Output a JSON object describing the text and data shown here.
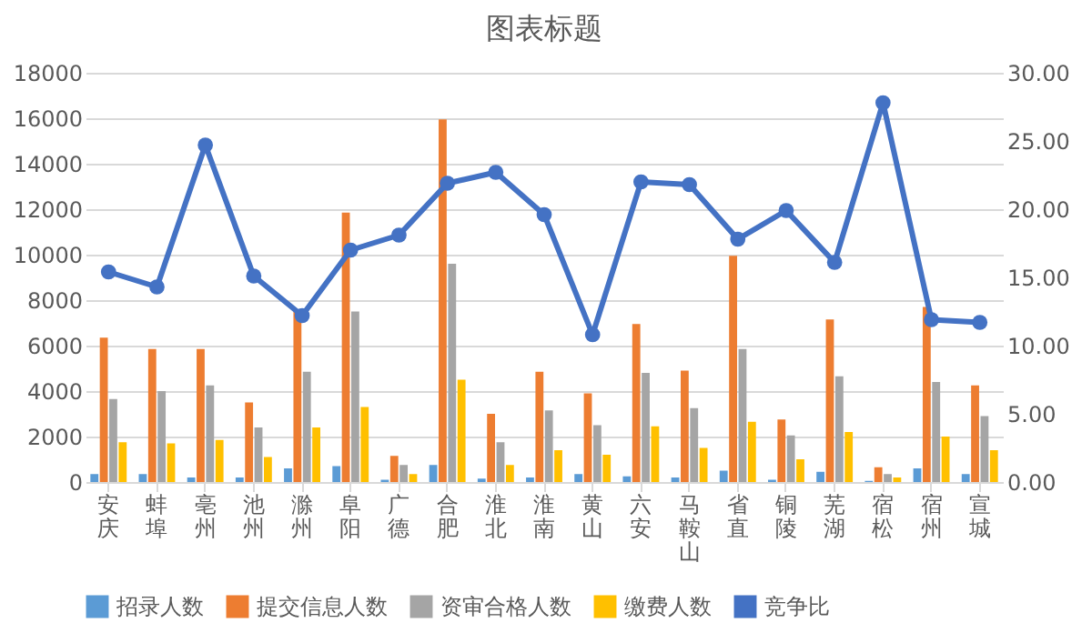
{
  "chart_data": {
    "type": "bar",
    "title": "图表标题",
    "categories": [
      "安庆",
      "蚌埠",
      "亳州",
      "池州",
      "滁州",
      "阜阳",
      "广德",
      "合肥",
      "淮北",
      "淮南",
      "黄山",
      "六安",
      "马鞍山",
      "省直",
      "铜陵",
      "芜湖",
      "宿松",
      "宿州",
      "宣城"
    ],
    "series": [
      {
        "name": "招录人数",
        "color": "#5b9bd5",
        "values": [
          350,
          350,
          200,
          200,
          600,
          700,
          100,
          750,
          150,
          200,
          350,
          250,
          200,
          500,
          100,
          450,
          50,
          600,
          350
        ]
      },
      {
        "name": "提交信息人数",
        "color": "#ed7d31",
        "values": [
          6350,
          5850,
          5850,
          3500,
          7600,
          11850,
          1150,
          15950,
          3000,
          4850,
          3900,
          6950,
          4900,
          9950,
          2750,
          7150,
          650,
          7700,
          4250
        ]
      },
      {
        "name": "资审合格人数",
        "color": "#a5a5a5",
        "values": [
          3650,
          4000,
          4250,
          2400,
          4850,
          7500,
          750,
          9600,
          1750,
          3150,
          2500,
          4800,
          3250,
          5850,
          2050,
          4650,
          350,
          4400,
          2900
        ]
      },
      {
        "name": "缴费人数",
        "color": "#ffc000",
        "values": [
          1750,
          1700,
          1850,
          1100,
          2400,
          3300,
          350,
          4500,
          750,
          1400,
          1200,
          2450,
          1500,
          2650,
          1000,
          2200,
          200,
          2000,
          1400
        ]
      },
      {
        "name": "竞争比",
        "color": "#4472c4",
        "type": "line",
        "axis": "y2",
        "marker": "circle",
        "values": [
          15.4,
          14.3,
          24.7,
          15.1,
          12.2,
          17.0,
          18.1,
          21.9,
          22.7,
          19.6,
          10.8,
          22.0,
          21.8,
          17.8,
          19.9,
          16.1,
          27.8,
          11.9,
          11.7
        ]
      }
    ],
    "ylim": [
      0,
      18000
    ],
    "yticks": [
      0,
      2000,
      4000,
      6000,
      8000,
      10000,
      12000,
      14000,
      16000,
      18000
    ],
    "y2lim": [
      0,
      30
    ],
    "y2ticks": [
      {
        "value": 0,
        "label": "0.00"
      },
      {
        "value": 5,
        "label": "5.00"
      },
      {
        "value": 10,
        "label": "10.00"
      },
      {
        "value": 15,
        "label": "15.00"
      },
      {
        "value": 20,
        "label": "20.00"
      },
      {
        "value": 25,
        "label": "25.00"
      },
      {
        "value": 30,
        "label": "30.00"
      }
    ],
    "grid": "y",
    "legend": "bottom"
  }
}
